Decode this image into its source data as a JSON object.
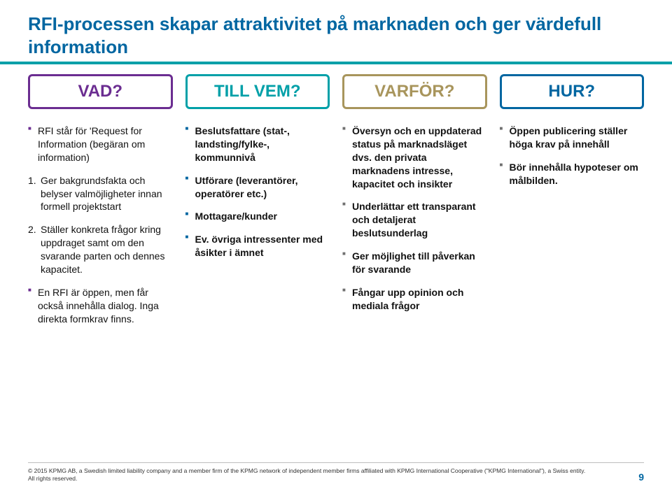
{
  "title": "RFI-processen skapar attraktivitet på marknaden och ger värdefull information",
  "columns": [
    {
      "label": "VAD?",
      "border_color": "#6b2d91",
      "text_color": "#6b2d91",
      "bullet_color": "#6b2d91",
      "lead": "RFI står för 'Request for Information (begäran om information)",
      "ordered": [
        "Ger bakgrundsfakta och belyser valmöjligheter innan formell projektstart",
        "Ställer konkreta frågor kring uppdraget samt om den svarande parten och dennes kapacitet."
      ],
      "trail": "En RFI är öppen, men får också innehålla dialog. Inga direkta formkrav finns.",
      "items": []
    },
    {
      "label": "TILL VEM?",
      "border_color": "#00a0a8",
      "text_color": "#00a0a8",
      "bullet_color": "#0066a1",
      "items": [
        "Beslutsfattare (stat-, landsting/fylke-, kommunnivå",
        "Utförare (leverantörer, operatörer etc.)",
        "Mottagare/kunder",
        "Ev. övriga intressenter med åsikter i ämnet"
      ]
    },
    {
      "label": "VARFÖR?",
      "border_color": "#a8955c",
      "text_color": "#a8955c",
      "bullet_color": "#707070",
      "items": [
        "Översyn och en uppdaterad status på marknadsläget dvs. den privata marknadens intresse, kapacitet och insikter",
        "Underlättar ett transparant och detaljerat beslutsunderlag",
        "Ger möjlighet till påverkan för svarande",
        "Fångar upp opinion och mediala frågor"
      ]
    },
    {
      "label": "HUR?",
      "border_color": "#0066a1",
      "text_color": "#0066a1",
      "bullet_color": "#707070",
      "items": [
        "Öppen publicering ställer höga krav på innehåll",
        "Bör innehålla hypoteser om målbilden."
      ]
    }
  ],
  "footer": {
    "text_line1": "© 2015 KPMG AB, a Swedish limited liability company and a member firm of the KPMG network of independent member firms affiliated with KPMG International Cooperative (\"KPMG International\"), a Swiss entity.",
    "text_line2": "All rights reserved.",
    "page": "9"
  },
  "styling": {
    "title_color": "#0066a1",
    "title_fontsize": 26,
    "underline_color": "#00a0a8",
    "label_fontsize": 24,
    "body_fontsize": 14,
    "footer_fontsize": 8.5,
    "page_color": "#0066a1",
    "background": "#ffffff"
  }
}
